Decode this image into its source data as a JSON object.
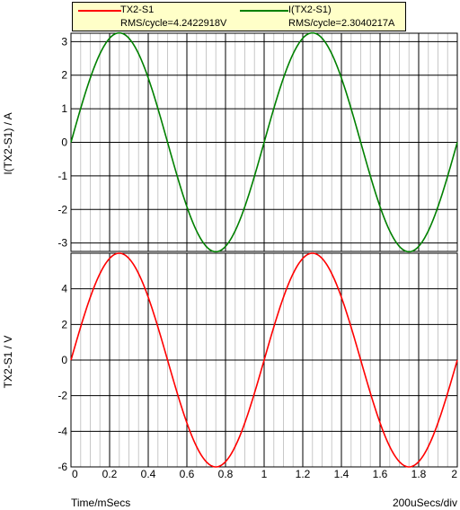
{
  "legend": [
    {
      "name": "TX2-S1",
      "rms": "RMS/cycle=4.2422918V",
      "color": "#ff0000"
    },
    {
      "name": "I(TX2-S1)",
      "rms": "RMS/cycle=2.3040217A",
      "color": "#008000"
    }
  ],
  "x_axis_label": "Time/mSecs",
  "time_per_div": "200uSecs/div",
  "chart_data": [
    {
      "type": "line",
      "ylabel": "I(TX2-S1) / A",
      "xlim": [
        0,
        2
      ],
      "ylim": [
        -3.25,
        3.25
      ],
      "yticks": [
        -3,
        -2,
        -1,
        0,
        1,
        2,
        3
      ],
      "xticks": [],
      "grid": true,
      "series": [
        {
          "name": "I(TX2-S1)",
          "color": "#008000",
          "waveform": "sine",
          "amplitude": 3.26,
          "frequency_per_ms": 1,
          "phase": 0
        }
      ]
    },
    {
      "type": "line",
      "ylabel": "TX2-S1 / V",
      "xlim": [
        0,
        2
      ],
      "ylim": [
        -6,
        6
      ],
      "yticks": [
        -6,
        -4,
        -2,
        0,
        2,
        4
      ],
      "xticks": [
        "0",
        "0.2",
        "0.4",
        "0.6",
        "0.8",
        "1",
        "1.2",
        "1.4",
        "1.6",
        "1.8",
        "2"
      ],
      "grid": true,
      "series": [
        {
          "name": "TX2-S1",
          "color": "#ff0000",
          "waveform": "sine",
          "amplitude": 6.0,
          "frequency_per_ms": 1,
          "phase": 0
        }
      ]
    }
  ]
}
